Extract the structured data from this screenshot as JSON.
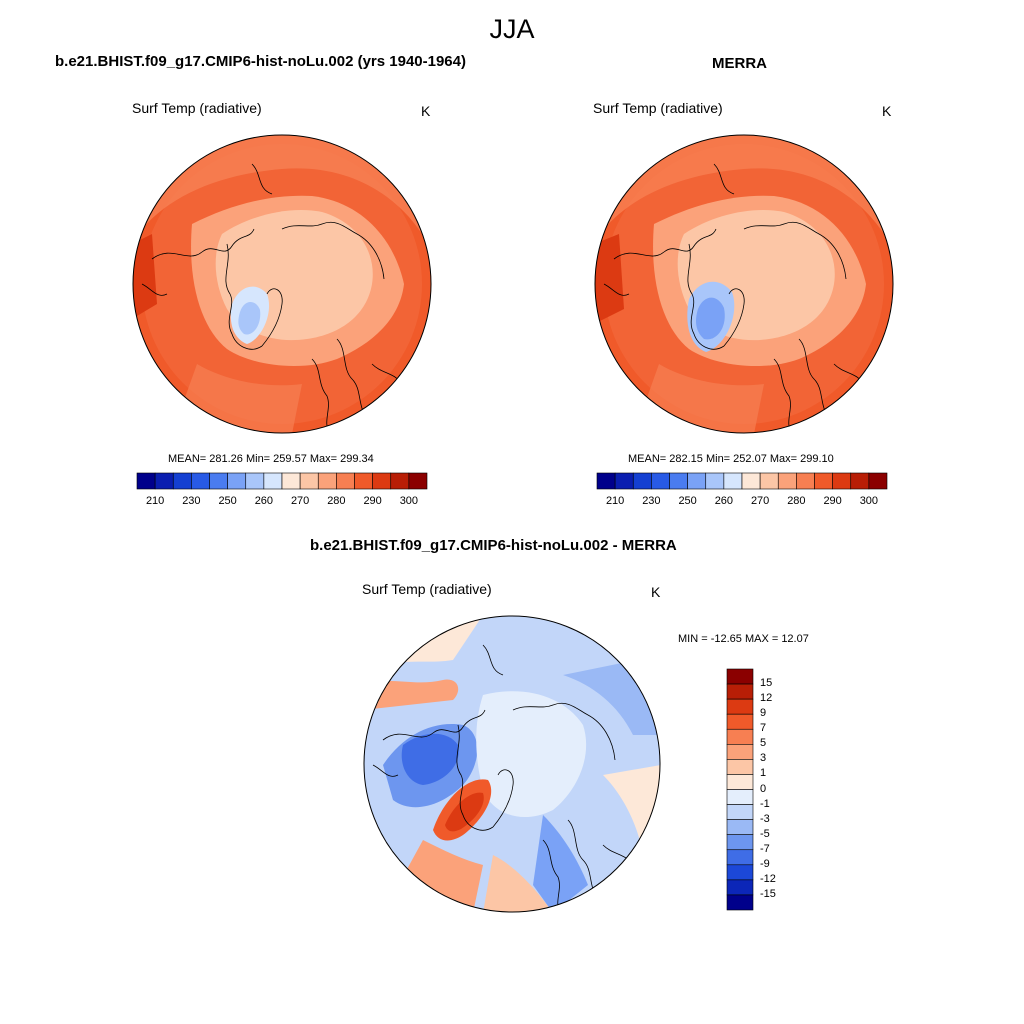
{
  "figure": {
    "season_title": "JJA"
  },
  "panels": [
    {
      "title": "b.e21.BHIST.f09_g17.CMIP6-hist-noLu.002 (yrs 1940-1964)",
      "field_label": "Surf Temp (radiative)",
      "units": "K",
      "stats": "MEAN= 281.26   Min= 259.57   Max= 299.34",
      "map": {
        "projection": "north-polar-stereographic",
        "field_range_K": [
          259.57,
          299.34
        ]
      }
    },
    {
      "title": "MERRA",
      "field_label": "Surf Temp (radiative)",
      "units": "K",
      "stats": "MEAN= 282.15   Min= 252.07   Max= 299.10",
      "map": {
        "projection": "north-polar-stereographic",
        "field_range_K": [
          252.07,
          299.1
        ]
      }
    },
    {
      "title": "b.e21.BHIST.f09_g17.CMIP6-hist-noLu.002 - MERRA",
      "field_label": "Surf Temp (radiative)",
      "units": "K",
      "stats": "MIN = -12.65 MAX =  12.07",
      "map": {
        "projection": "north-polar-stereographic",
        "field_range_K": [
          -12.65,
          12.07
        ]
      }
    }
  ],
  "colorbars": {
    "absolute": {
      "orientation": "horizontal",
      "tick_labels": [
        "210",
        "230",
        "250",
        "260",
        "270",
        "280",
        "290",
        "300"
      ],
      "colors": [
        "#00008b",
        "#0a1eb0",
        "#1440d2",
        "#285ae6",
        "#4a7cf0",
        "#7aa2f6",
        "#a9c6fa",
        "#d6e6fd",
        "#fde8d8",
        "#fcc6a6",
        "#fba27a",
        "#f77f52",
        "#f05a2a",
        "#dc3a12",
        "#b81e06",
        "#8b0000"
      ]
    },
    "difference": {
      "orientation": "vertical",
      "tick_labels": [
        "15",
        "12",
        "9",
        "7",
        "5",
        "3",
        "1",
        "0",
        "-1",
        "-3",
        "-5",
        "-7",
        "-9",
        "-12",
        "-15"
      ],
      "colors": [
        "#8b0000",
        "#b81e06",
        "#dc3a12",
        "#f05a2a",
        "#f77f52",
        "#fba27a",
        "#fcc6a6",
        "#fde8d8",
        "#e4eefc",
        "#c2d6f9",
        "#9ab9f5",
        "#6d96ef",
        "#3f6de6",
        "#1c48d8",
        "#0c26b8",
        "#00008b"
      ]
    }
  }
}
